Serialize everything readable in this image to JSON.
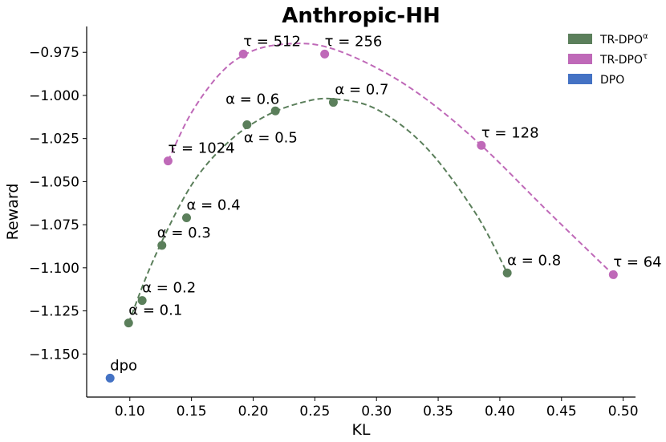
{
  "chart_data": {
    "type": "scatter",
    "title": "Anthropic-HH",
    "xlabel": "KL",
    "ylabel": "Reward",
    "xlim": [
      0.065,
      0.51
    ],
    "ylim": [
      -1.175,
      -0.96
    ],
    "xticks": [
      0.1,
      0.15,
      0.2,
      0.25,
      0.3,
      0.35,
      0.4,
      0.45,
      0.5
    ],
    "xtick_labels": [
      "0.10",
      "0.15",
      "0.20",
      "0.25",
      "0.30",
      "0.35",
      "0.40",
      "0.45",
      "0.50"
    ],
    "yticks": [
      -0.975,
      -1.0,
      -1.025,
      -1.05,
      -1.075,
      -1.1,
      -1.125,
      -1.15
    ],
    "ytick_labels": [
      "−0.975",
      "−1.000",
      "−1.025",
      "−1.050",
      "−1.075",
      "−1.100",
      "−1.125",
      "−1.150"
    ],
    "grid": false,
    "legend_position": "top-right",
    "series": [
      {
        "name": "TR-DPO",
        "name_superscript": "α",
        "color": "#5b7f5b",
        "fit_line": "dashed quadratic",
        "points": [
          {
            "x": 0.099,
            "y": -1.132,
            "label": "α = 0.1",
            "dx": 0,
            "dy": -10
          },
          {
            "x": 0.11,
            "y": -1.119,
            "label": "α = 0.2",
            "dx": 0,
            "dy": -10
          },
          {
            "x": 0.126,
            "y": -1.087,
            "label": "α = 0.3",
            "dx": -6,
            "dy": -10
          },
          {
            "x": 0.146,
            "y": -1.071,
            "label": "α = 0.4",
            "dx": 0,
            "dy": -10
          },
          {
            "x": 0.195,
            "y": -1.017,
            "label": "α = 0.5",
            "dx": -4,
            "dy": 22
          },
          {
            "x": 0.218,
            "y": -1.009,
            "label": "α = 0.6",
            "dx": -62,
            "dy": -9
          },
          {
            "x": 0.265,
            "y": -1.004,
            "label": "α = 0.7",
            "dx": 2,
            "dy": -10
          },
          {
            "x": 0.406,
            "y": -1.103,
            "label": "α = 0.8",
            "dx": 0,
            "dy": -10
          }
        ],
        "fit_curve": [
          {
            "x": 0.099,
            "y": -1.132
          },
          {
            "x": 0.12,
            "y": -1.094
          },
          {
            "x": 0.15,
            "y": -1.052
          },
          {
            "x": 0.18,
            "y": -1.027
          },
          {
            "x": 0.21,
            "y": -1.012
          },
          {
            "x": 0.24,
            "y": -1.004
          },
          {
            "x": 0.265,
            "y": -1.002
          },
          {
            "x": 0.3,
            "y": -1.008
          },
          {
            "x": 0.34,
            "y": -1.03
          },
          {
            "x": 0.38,
            "y": -1.068
          },
          {
            "x": 0.406,
            "y": -1.103
          }
        ]
      },
      {
        "name": "TR-DPO",
        "name_superscript": "τ",
        "color": "#bf69b8",
        "fit_line": "dashed quadratic",
        "points": [
          {
            "x": 0.131,
            "y": -1.038,
            "label": "τ = 1024",
            "dx": 0,
            "dy": -10
          },
          {
            "x": 0.192,
            "y": -0.976,
            "label": "τ = 512",
            "dx": 0,
            "dy": -10
          },
          {
            "x": 0.258,
            "y": -0.976,
            "label": "τ = 256",
            "dx": 0,
            "dy": -10
          },
          {
            "x": 0.385,
            "y": -1.029,
            "label": "τ = 128",
            "dx": 0,
            "dy": -10
          },
          {
            "x": 0.492,
            "y": -1.104,
            "label": "τ = 64",
            "dx": 0,
            "dy": -10
          }
        ],
        "fit_curve": [
          {
            "x": 0.131,
            "y": -1.038
          },
          {
            "x": 0.15,
            "y": -1.01
          },
          {
            "x": 0.175,
            "y": -0.986
          },
          {
            "x": 0.2,
            "y": -0.974
          },
          {
            "x": 0.23,
            "y": -0.97
          },
          {
            "x": 0.26,
            "y": -0.972
          },
          {
            "x": 0.3,
            "y": -0.984
          },
          {
            "x": 0.34,
            "y": -1.002
          },
          {
            "x": 0.385,
            "y": -1.029
          },
          {
            "x": 0.44,
            "y": -1.068
          },
          {
            "x": 0.492,
            "y": -1.104
          }
        ]
      },
      {
        "name": "DPO",
        "name_superscript": "",
        "color": "#4472c4",
        "fit_line": "none",
        "points": [
          {
            "x": 0.084,
            "y": -1.164,
            "label": "dpo",
            "dx": 0,
            "dy": -10
          }
        ],
        "fit_curve": []
      }
    ]
  }
}
